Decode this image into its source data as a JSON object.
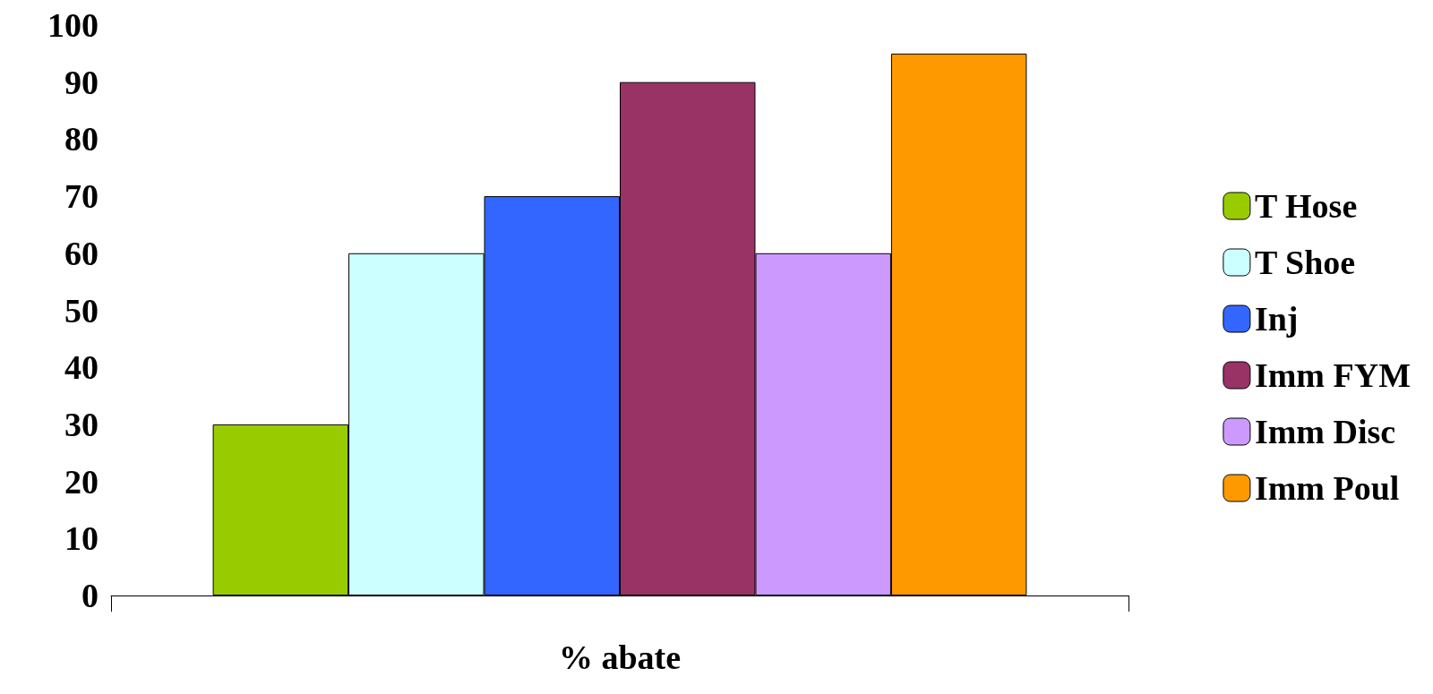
{
  "chart_data": {
    "type": "bar",
    "categories": [
      "% abate"
    ],
    "series": [
      {
        "name": "T Hose",
        "color": "#99cc00",
        "values": [
          30
        ]
      },
      {
        "name": "T Shoe",
        "color": "#ccffff",
        "values": [
          60
        ]
      },
      {
        "name": "Inj",
        "color": "#3366ff",
        "values": [
          70
        ]
      },
      {
        "name": "Imm FYM",
        "color": "#993366",
        "values": [
          90
        ]
      },
      {
        "name": "Imm Disc",
        "color": "#cc99ff",
        "values": [
          60
        ]
      },
      {
        "name": "Imm Poul",
        "color": "#ff9900",
        "values": [
          95
        ]
      }
    ],
    "ylim": [
      0,
      100
    ],
    "yticks": [
      0,
      10,
      20,
      30,
      40,
      50,
      60,
      70,
      80,
      90,
      100
    ],
    "grid": false,
    "legend": "right"
  }
}
